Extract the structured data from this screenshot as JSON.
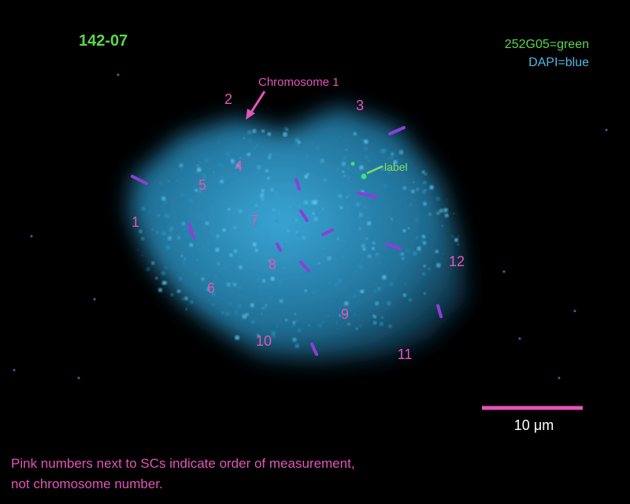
{
  "sample_id": "142-07",
  "legend": [
    "252G05=green",
    "DAPI=blue"
  ],
  "annotations": {
    "chromosome": "Chromosome 1",
    "probe": "label",
    "order": [
      "1",
      "2",
      "3",
      "4",
      "5",
      "6",
      "7",
      "8",
      "9",
      "10",
      "11",
      "12"
    ]
  },
  "scale_bar": "10 μm",
  "caption": [
    "Pink numbers next to SCs indicate order of measurement,",
    "not chromosome number."
  ]
}
